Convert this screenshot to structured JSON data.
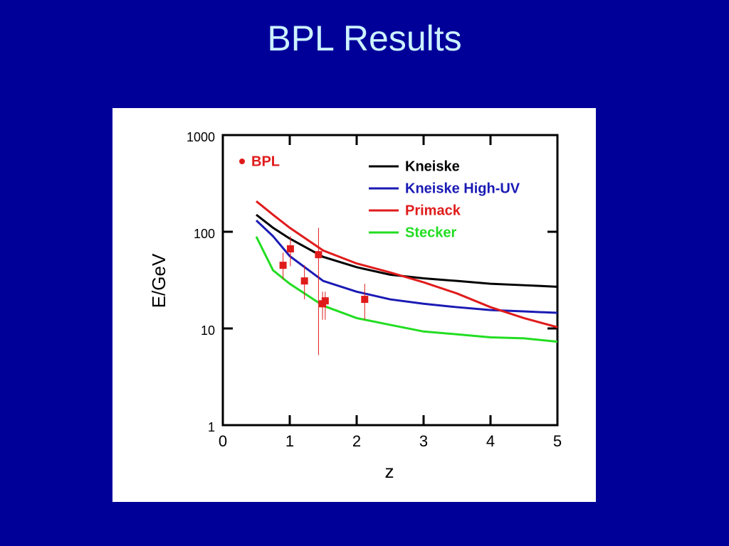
{
  "chart_data": {
    "type": "line",
    "title": "BPL Results",
    "xlabel": "z",
    "ylabel": "E/GeV",
    "xlim": [
      0,
      5
    ],
    "xticks": [
      0,
      1,
      2,
      3,
      4,
      5
    ],
    "ylim": [
      1,
      1000
    ],
    "yticks": [
      1,
      10,
      100,
      1000
    ],
    "yscale": "log",
    "x": [
      0.5,
      0.75,
      1,
      1.5,
      2,
      2.5,
      3,
      3.5,
      4,
      4.5,
      5
    ],
    "series": [
      {
        "name": "Kneiske",
        "color": "#000000",
        "values": [
          150,
          110,
          85,
          55,
          43,
          36,
          33,
          31,
          29,
          28,
          27
        ]
      },
      {
        "name": "Kneiske High-UV",
        "color": "#1a1ab4",
        "values": [
          131,
          90,
          56,
          31,
          24,
          20,
          18,
          16.6,
          15.5,
          15,
          14.5
        ]
      },
      {
        "name": "Primack",
        "color": "#e01b1b",
        "values": [
          207,
          150,
          110,
          64,
          47,
          38,
          30,
          23,
          16.6,
          12.8,
          10.3
        ]
      },
      {
        "name": "Stecker",
        "color": "#22dd22",
        "values": [
          89,
          40,
          29,
          17.2,
          12.8,
          10.9,
          9.3,
          8.7,
          8.1,
          7.9,
          7.3
        ]
      }
    ],
    "points": {
      "name": "BPL",
      "color": "#e01b1b",
      "x": [
        0.9,
        1.01,
        1.22,
        1.43,
        1.49,
        1.53,
        2.12
      ],
      "values": [
        45,
        66.6,
        31,
        58,
        18,
        19.3,
        20
      ],
      "err_low": [
        32,
        44,
        20,
        5.3,
        12.3,
        12.3,
        12.3
      ],
      "err_high": [
        61,
        90,
        45,
        110,
        24,
        24,
        29
      ]
    }
  }
}
